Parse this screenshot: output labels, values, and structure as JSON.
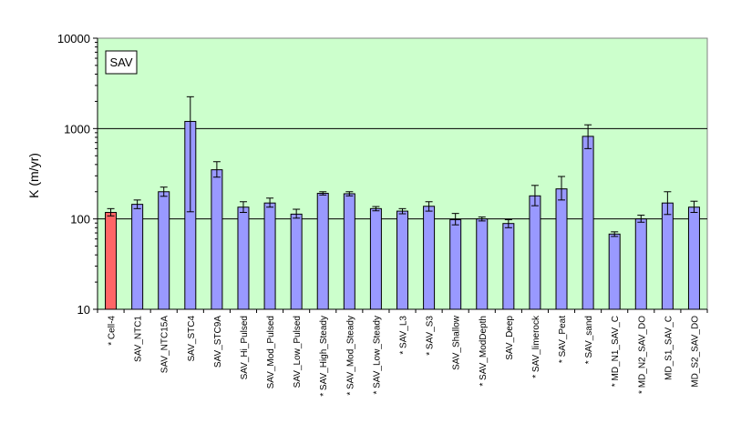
{
  "chart_data": {
    "type": "bar",
    "y_scale": "log",
    "ylim": [
      10,
      10000
    ],
    "yticks": [
      "10",
      "100",
      "1000",
      "10000"
    ],
    "ylabel": "K (m/yr)",
    "xlabel": "",
    "label_box": "SAV",
    "grid": "horizontal major lines",
    "colors": {
      "plot_bg": "#ccffcc",
      "bar": "#9999ff",
      "highlight_bar": "#ff6666",
      "bar_edge": "#000000"
    },
    "categories": [
      "* Cell-4",
      "SAV_NTC1",
      "SAV_NTC15A",
      "SAV_STC4",
      "SAV_STC9A",
      "SAV_Hi_Pulsed",
      "SAV_Mod_Pulsed",
      "SAV_Low_Pulsed",
      "* SAV_High_Steady",
      "* SAV_Mod_Steady",
      "* SAV_Low_Steady",
      "* SAV_L3",
      "* SAV_S3",
      "SAV_Shallow",
      "* SAV_ModDepth",
      "SAV_Deep",
      "* SAV_limerock",
      "* SAV_Peat",
      "* SAV_sand",
      "* MD_N1_SAV_C",
      "* MD_N2_SAV_DO",
      "MD_S1_SAV_C",
      "MD_S2_SAV_DO"
    ],
    "values": [
      118,
      145,
      200,
      1200,
      350,
      135,
      150,
      113,
      192,
      190,
      130,
      122,
      138,
      98,
      100,
      89,
      180,
      215,
      820,
      68,
      100,
      150,
      135
    ],
    "error_high": [
      130,
      162,
      225,
      2250,
      430,
      155,
      170,
      128,
      200,
      200,
      137,
      130,
      155,
      115,
      105,
      98,
      235,
      295,
      1100,
      72,
      110,
      200,
      157
    ],
    "error_low": [
      108,
      130,
      178,
      120,
      290,
      118,
      135,
      102,
      184,
      180,
      123,
      114,
      122,
      86,
      95,
      80,
      140,
      162,
      600,
      64,
      92,
      112,
      118
    ],
    "highlight_index": 0
  }
}
